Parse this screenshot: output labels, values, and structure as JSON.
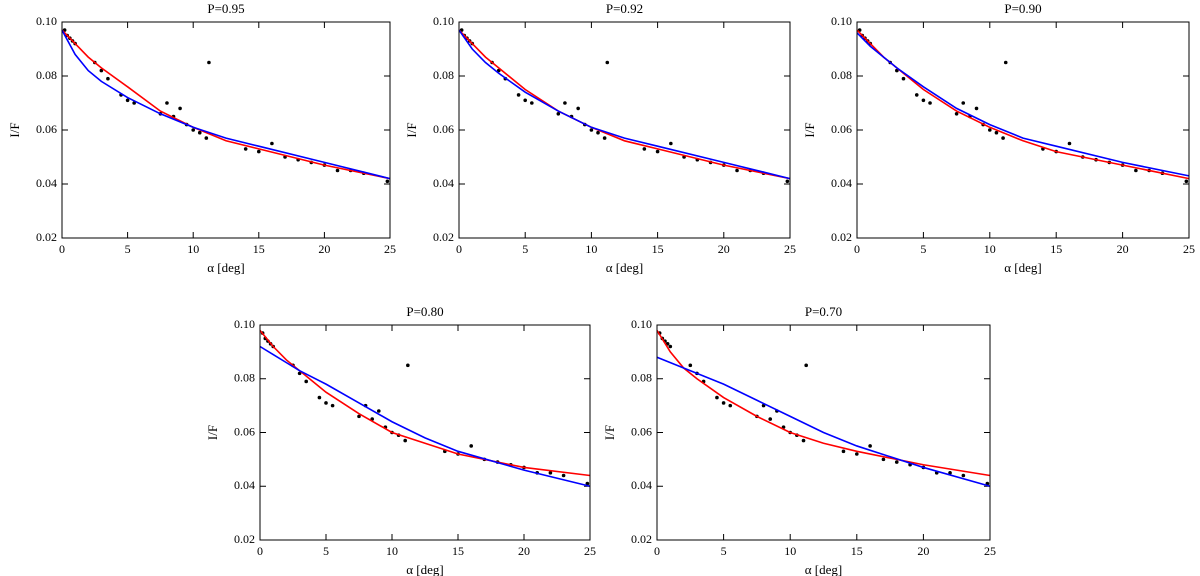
{
  "chart_data": [
    {
      "type": "scatter",
      "title": "P=0.95",
      "x_label": "α [deg]",
      "y_label": "I/F",
      "xlim": [
        0,
        25
      ],
      "ylim": [
        0.02,
        0.1
      ],
      "xticks": [
        0,
        5,
        10,
        15,
        20,
        25
      ],
      "yticks": [
        0.02,
        0.04,
        0.06,
        0.08,
        {
          "value": 0.1,
          "label": "0.10"
        }
      ],
      "series": [
        {
          "type": "markers",
          "color": "#000000",
          "x": [
            0.2,
            0.4,
            0.6,
            0.8,
            1.0,
            2.5,
            3.0,
            3.5,
            4.5,
            5.0,
            5.5,
            7.5,
            8.0,
            8.5,
            9.0,
            9.5,
            10.0,
            10.5,
            11.0,
            11.2,
            14,
            15,
            16,
            17,
            18,
            19,
            20,
            21,
            22,
            23,
            24.8
          ],
          "values": [
            0.097,
            0.095,
            0.094,
            0.093,
            0.092,
            0.085,
            0.082,
            0.079,
            0.073,
            0.071,
            0.07,
            0.066,
            0.07,
            0.065,
            0.068,
            0.062,
            0.06,
            0.059,
            0.057,
            0.085,
            0.053,
            0.052,
            0.055,
            0.05,
            0.049,
            0.048,
            0.047,
            0.045,
            0.045,
            0.044,
            0.041
          ]
        },
        {
          "type": "line",
          "color": "#ff0000",
          "x": [
            0,
            1,
            2,
            3,
            5,
            7.5,
            10,
            12.5,
            15,
            20,
            25
          ],
          "values": [
            0.097,
            0.092,
            0.087,
            0.083,
            0.076,
            0.067,
            0.061,
            0.056,
            0.053,
            0.047,
            0.042
          ]
        },
        {
          "type": "line",
          "color": "#0000ff",
          "x": [
            0,
            1,
            2,
            3,
            5,
            7.5,
            10,
            12.5,
            15,
            20,
            25
          ],
          "values": [
            0.097,
            0.088,
            0.082,
            0.078,
            0.072,
            0.066,
            0.061,
            0.057,
            0.054,
            0.048,
            0.042
          ]
        }
      ]
    },
    {
      "type": "scatter",
      "title": "P=0.92",
      "x_label": "α [deg]",
      "y_label": "I/F",
      "xlim": [
        0,
        25
      ],
      "ylim": [
        0.02,
        0.1
      ],
      "xticks": [
        0,
        5,
        10,
        15,
        20,
        25
      ],
      "yticks": [
        0.02,
        0.04,
        0.06,
        0.08,
        {
          "value": 0.1,
          "label": "0.10"
        }
      ],
      "series": [
        {
          "type": "markers",
          "color": "#000000",
          "x": [
            0.2,
            0.4,
            0.6,
            0.8,
            1.0,
            2.5,
            3.0,
            3.5,
            4.5,
            5.0,
            5.5,
            7.5,
            8.0,
            8.5,
            9.0,
            9.5,
            10.0,
            10.5,
            11.0,
            11.2,
            14,
            15,
            16,
            17,
            18,
            19,
            20,
            21,
            22,
            23,
            24.8
          ],
          "values": [
            0.097,
            0.095,
            0.094,
            0.093,
            0.092,
            0.085,
            0.082,
            0.079,
            0.073,
            0.071,
            0.07,
            0.066,
            0.07,
            0.065,
            0.068,
            0.062,
            0.06,
            0.059,
            0.057,
            0.085,
            0.053,
            0.052,
            0.055,
            0.05,
            0.049,
            0.048,
            0.047,
            0.045,
            0.045,
            0.044,
            0.041
          ]
        },
        {
          "type": "line",
          "color": "#ff0000",
          "x": [
            0,
            1,
            2,
            3,
            5,
            7.5,
            10,
            12.5,
            15,
            20,
            25
          ],
          "values": [
            0.097,
            0.092,
            0.087,
            0.083,
            0.075,
            0.067,
            0.061,
            0.056,
            0.053,
            0.047,
            0.042
          ]
        },
        {
          "type": "line",
          "color": "#0000ff",
          "x": [
            0,
            1,
            2,
            3,
            5,
            7.5,
            10,
            12.5,
            15,
            20,
            25
          ],
          "values": [
            0.097,
            0.09,
            0.085,
            0.081,
            0.074,
            0.067,
            0.061,
            0.057,
            0.054,
            0.048,
            0.042
          ]
        }
      ]
    },
    {
      "type": "scatter",
      "title": "P=0.90",
      "x_label": "α [deg]",
      "y_label": "I/F",
      "xlim": [
        0,
        25
      ],
      "ylim": [
        0.02,
        0.1
      ],
      "xticks": [
        0,
        5,
        10,
        15,
        20,
        25
      ],
      "yticks": [
        0.02,
        0.04,
        0.06,
        0.08,
        {
          "value": 0.1,
          "label": "0.10"
        }
      ],
      "series": [
        {
          "type": "markers",
          "color": "#000000",
          "x": [
            0.2,
            0.4,
            0.6,
            0.8,
            1.0,
            2.5,
            3.0,
            3.5,
            4.5,
            5.0,
            5.5,
            7.5,
            8.0,
            8.5,
            9.0,
            9.5,
            10.0,
            10.5,
            11.0,
            11.2,
            14,
            15,
            16,
            17,
            18,
            19,
            20,
            21,
            22,
            23,
            24.8
          ],
          "values": [
            0.097,
            0.095,
            0.094,
            0.093,
            0.092,
            0.085,
            0.082,
            0.079,
            0.073,
            0.071,
            0.07,
            0.066,
            0.07,
            0.065,
            0.068,
            0.062,
            0.06,
            0.059,
            0.057,
            0.085,
            0.053,
            0.052,
            0.055,
            0.05,
            0.049,
            0.048,
            0.047,
            0.045,
            0.045,
            0.044,
            0.041
          ]
        },
        {
          "type": "line",
          "color": "#ff0000",
          "x": [
            0,
            1,
            2,
            3,
            5,
            7.5,
            10,
            12.5,
            15,
            20,
            25
          ],
          "values": [
            0.097,
            0.092,
            0.087,
            0.083,
            0.075,
            0.067,
            0.061,
            0.056,
            0.052,
            0.047,
            0.042
          ]
        },
        {
          "type": "line",
          "color": "#0000ff",
          "x": [
            0,
            1,
            2,
            3,
            5,
            7.5,
            10,
            12.5,
            15,
            20,
            25
          ],
          "values": [
            0.096,
            0.091,
            0.087,
            0.083,
            0.076,
            0.068,
            0.062,
            0.057,
            0.054,
            0.048,
            0.043
          ]
        }
      ]
    },
    {
      "type": "scatter",
      "title": "P=0.80",
      "x_label": "α [deg]",
      "y_label": "I/F",
      "xlim": [
        0,
        25
      ],
      "ylim": [
        0.02,
        0.1
      ],
      "xticks": [
        0,
        5,
        10,
        15,
        20,
        25
      ],
      "yticks": [
        0.02,
        0.04,
        0.06,
        0.08,
        {
          "value": 0.1,
          "label": "0.10"
        }
      ],
      "series": [
        {
          "type": "markers",
          "color": "#000000",
          "x": [
            0.2,
            0.4,
            0.6,
            0.8,
            1.0,
            2.5,
            3.0,
            3.5,
            4.5,
            5.0,
            5.5,
            7.5,
            8.0,
            8.5,
            9.0,
            9.5,
            10.0,
            10.5,
            11.0,
            11.2,
            14,
            15,
            16,
            17,
            18,
            19,
            20,
            21,
            22,
            23,
            24.8
          ],
          "values": [
            0.097,
            0.095,
            0.094,
            0.093,
            0.092,
            0.085,
            0.082,
            0.079,
            0.073,
            0.071,
            0.07,
            0.066,
            0.07,
            0.065,
            0.068,
            0.062,
            0.06,
            0.059,
            0.057,
            0.085,
            0.053,
            0.052,
            0.055,
            0.05,
            0.049,
            0.048,
            0.047,
            0.045,
            0.045,
            0.044,
            0.041
          ]
        },
        {
          "type": "line",
          "color": "#ff0000",
          "x": [
            0,
            1,
            2,
            3,
            5,
            7.5,
            10,
            12.5,
            15,
            20,
            25
          ],
          "values": [
            0.098,
            0.092,
            0.087,
            0.083,
            0.075,
            0.067,
            0.06,
            0.056,
            0.052,
            0.047,
            0.044
          ]
        },
        {
          "type": "line",
          "color": "#0000ff",
          "x": [
            0,
            1,
            2,
            3,
            5,
            7.5,
            10,
            12.5,
            15,
            20,
            25
          ],
          "values": [
            0.092,
            0.089,
            0.086,
            0.083,
            0.078,
            0.071,
            0.064,
            0.058,
            0.053,
            0.046,
            0.04
          ]
        }
      ]
    },
    {
      "type": "scatter",
      "title": "P=0.70",
      "x_label": "α [deg]",
      "y_label": "I/F",
      "xlim": [
        0,
        25
      ],
      "ylim": [
        0.02,
        0.1
      ],
      "xticks": [
        0,
        5,
        10,
        15,
        20,
        25
      ],
      "yticks": [
        0.02,
        0.04,
        0.06,
        0.08,
        {
          "value": 0.1,
          "label": "0.10"
        }
      ],
      "series": [
        {
          "type": "markers",
          "color": "#000000",
          "x": [
            0.2,
            0.4,
            0.6,
            0.8,
            1.0,
            2.5,
            3.0,
            3.5,
            4.5,
            5.0,
            5.5,
            7.5,
            8.0,
            8.5,
            9.0,
            9.5,
            10.0,
            10.5,
            11.0,
            11.2,
            14,
            15,
            16,
            17,
            18,
            19,
            20,
            21,
            22,
            23,
            24.8
          ],
          "values": [
            0.097,
            0.095,
            0.094,
            0.093,
            0.092,
            0.085,
            0.082,
            0.079,
            0.073,
            0.071,
            0.07,
            0.066,
            0.07,
            0.065,
            0.068,
            0.062,
            0.06,
            0.059,
            0.057,
            0.085,
            0.053,
            0.052,
            0.055,
            0.05,
            0.049,
            0.048,
            0.047,
            0.045,
            0.045,
            0.044,
            0.041
          ]
        },
        {
          "type": "line",
          "color": "#ff0000",
          "x": [
            0,
            1,
            2,
            3,
            5,
            7.5,
            10,
            12.5,
            15,
            20,
            25
          ],
          "values": [
            0.098,
            0.09,
            0.084,
            0.08,
            0.073,
            0.066,
            0.06,
            0.056,
            0.053,
            0.048,
            0.044
          ]
        },
        {
          "type": "line",
          "color": "#0000ff",
          "x": [
            0,
            1,
            2,
            3,
            5,
            7.5,
            10,
            12.5,
            15,
            20,
            25
          ],
          "values": [
            0.088,
            0.086,
            0.084,
            0.082,
            0.078,
            0.072,
            0.066,
            0.06,
            0.055,
            0.047,
            0.04
          ]
        }
      ]
    }
  ]
}
